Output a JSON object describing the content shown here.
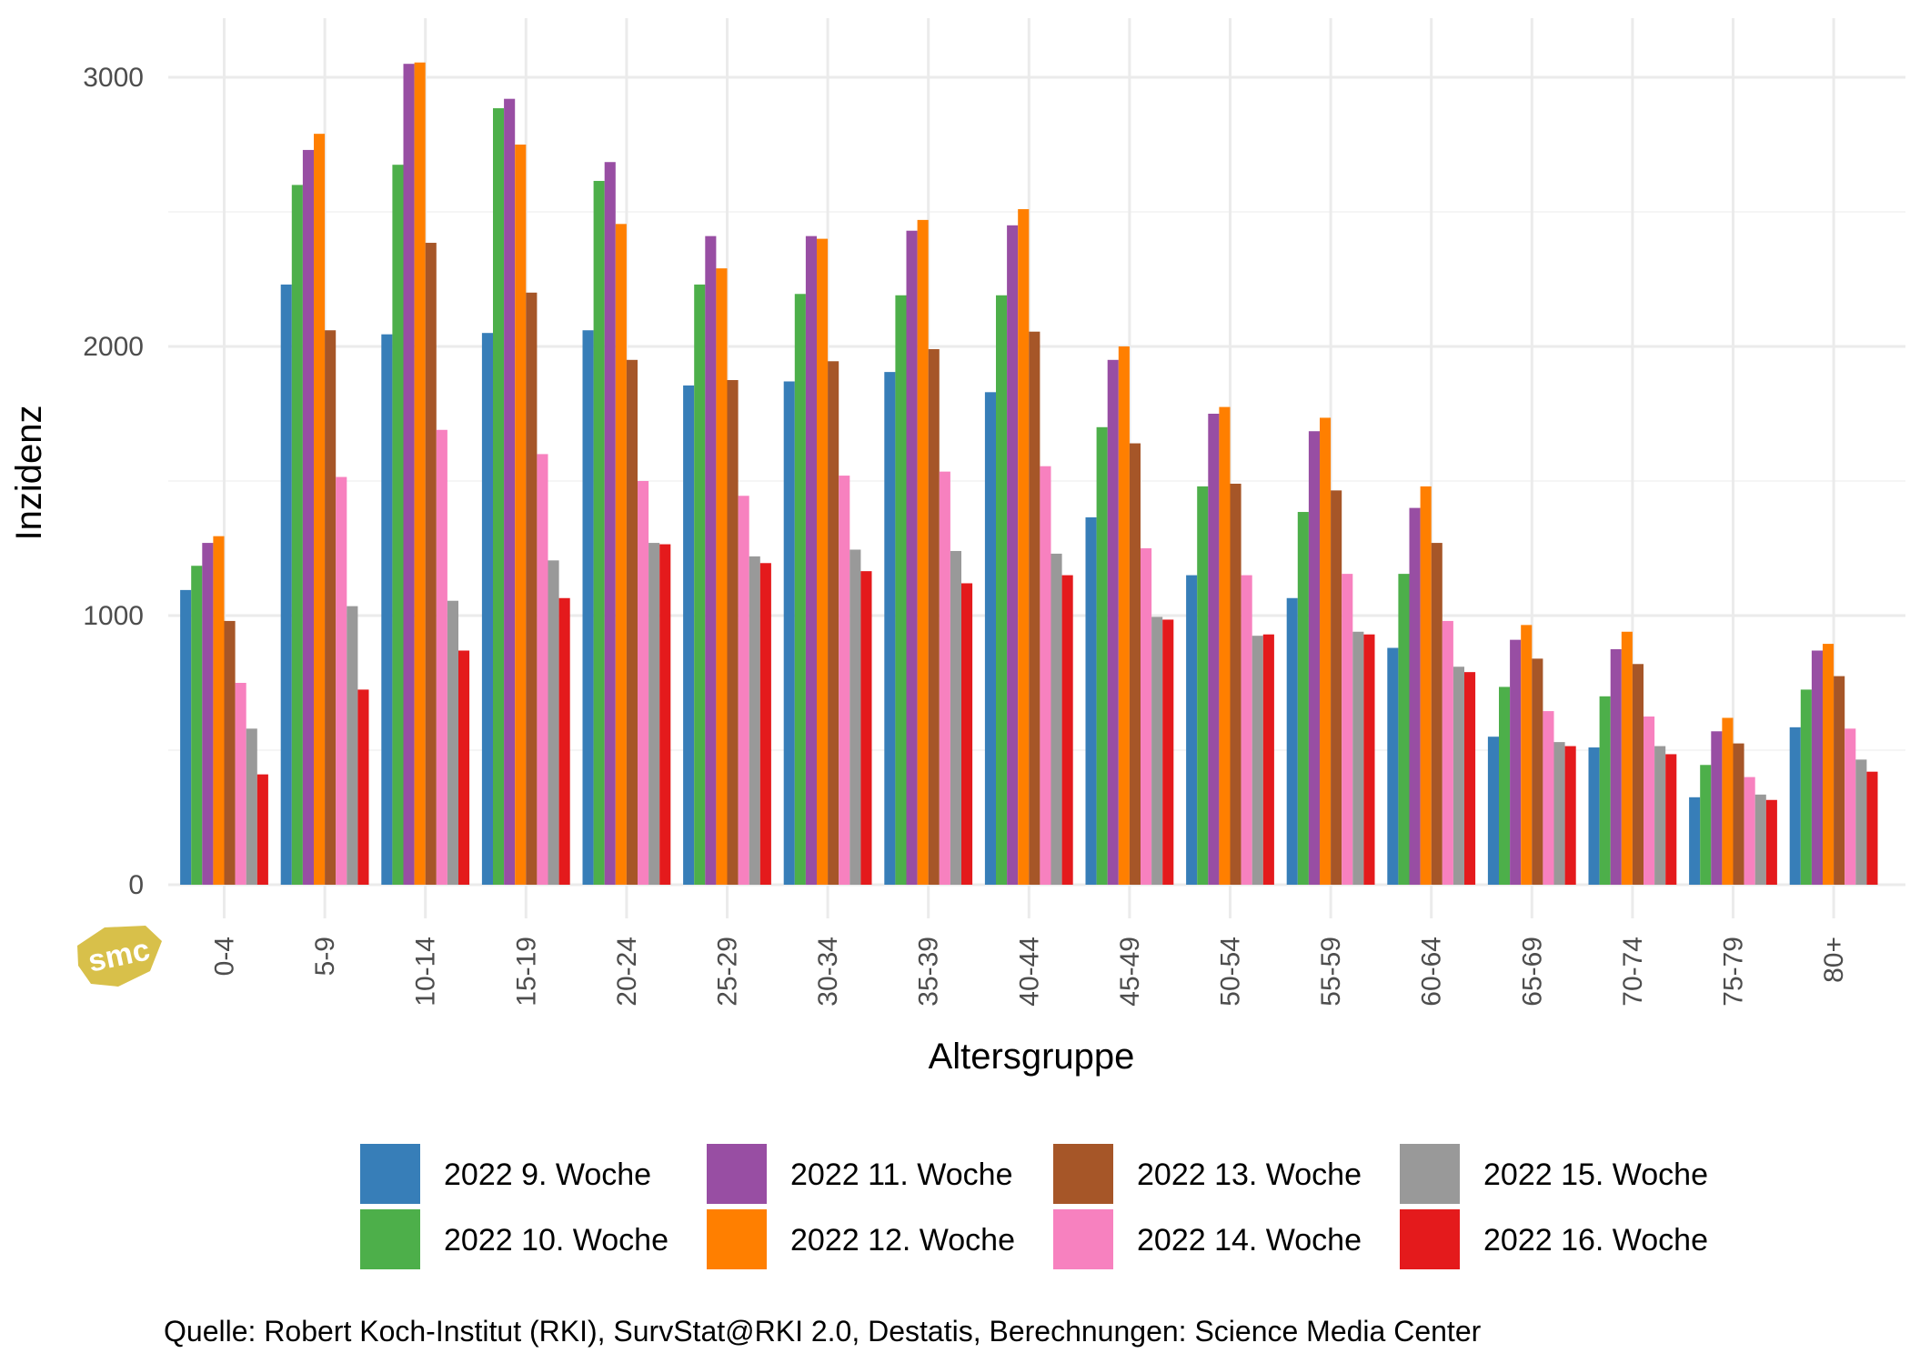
{
  "chart_data": {
    "type": "bar",
    "title": "",
    "xlabel": "Altersgruppe",
    "ylabel": "Inzidenz",
    "ylim": [
      -120,
      3210
    ],
    "yticks": [
      0,
      1000,
      2000,
      3000
    ],
    "grid": true,
    "legend_position": "bottom",
    "categories": [
      "0-4",
      "5-9",
      "10-14",
      "15-19",
      "20-24",
      "25-29",
      "30-34",
      "35-39",
      "40-44",
      "45-49",
      "50-54",
      "55-59",
      "60-64",
      "65-69",
      "70-74",
      "75-79",
      "80+"
    ],
    "series": [
      {
        "name": "2022 9. Woche",
        "color": "#377eb8",
        "values": [
          1095,
          2230,
          2045,
          2050,
          2060,
          1855,
          1870,
          1905,
          1830,
          1365,
          1150,
          1065,
          880,
          550,
          510,
          325,
          585
        ]
      },
      {
        "name": "2022 10. Woche",
        "color": "#4daf4a",
        "values": [
          1185,
          2600,
          2675,
          2885,
          2615,
          2230,
          2195,
          2190,
          2190,
          1700,
          1480,
          1385,
          1155,
          735,
          700,
          445,
          725
        ]
      },
      {
        "name": "2022 11. Woche",
        "color": "#984ea3",
        "values": [
          1270,
          2730,
          3050,
          2920,
          2685,
          2410,
          2410,
          2430,
          2450,
          1950,
          1750,
          1685,
          1400,
          910,
          875,
          570,
          870
        ]
      },
      {
        "name": "2022 12. Woche",
        "color": "#ff7f00",
        "values": [
          1295,
          2790,
          3055,
          2750,
          2455,
          2290,
          2400,
          2470,
          2510,
          2000,
          1775,
          1735,
          1480,
          965,
          940,
          620,
          895
        ]
      },
      {
        "name": "2022 13. Woche",
        "color": "#a65628",
        "values": [
          980,
          2060,
          2385,
          2200,
          1950,
          1875,
          1945,
          1990,
          2055,
          1640,
          1490,
          1465,
          1270,
          840,
          820,
          525,
          775
        ]
      },
      {
        "name": "2022 14. Woche",
        "color": "#f781bf",
        "values": [
          750,
          1515,
          1690,
          1600,
          1500,
          1445,
          1520,
          1535,
          1555,
          1250,
          1150,
          1155,
          980,
          645,
          625,
          400,
          580
        ]
      },
      {
        "name": "2022 15. Woche",
        "color": "#999999",
        "values": [
          580,
          1035,
          1055,
          1205,
          1270,
          1220,
          1245,
          1240,
          1230,
          995,
          925,
          940,
          810,
          530,
          515,
          335,
          465
        ]
      },
      {
        "name": "2022 16. Woche",
        "color": "#e41a1c",
        "values": [
          410,
          725,
          870,
          1065,
          1265,
          1195,
          1165,
          1120,
          1150,
          985,
          930,
          930,
          790,
          515,
          485,
          315,
          420
        ]
      }
    ]
  },
  "caption": "Quelle: Robert Koch-Institut (RKI), SurvStat@RKI 2.0, Destatis, Berechnungen: Science Media Center",
  "logo": {
    "text": "smc",
    "color": "#d8c04a"
  }
}
